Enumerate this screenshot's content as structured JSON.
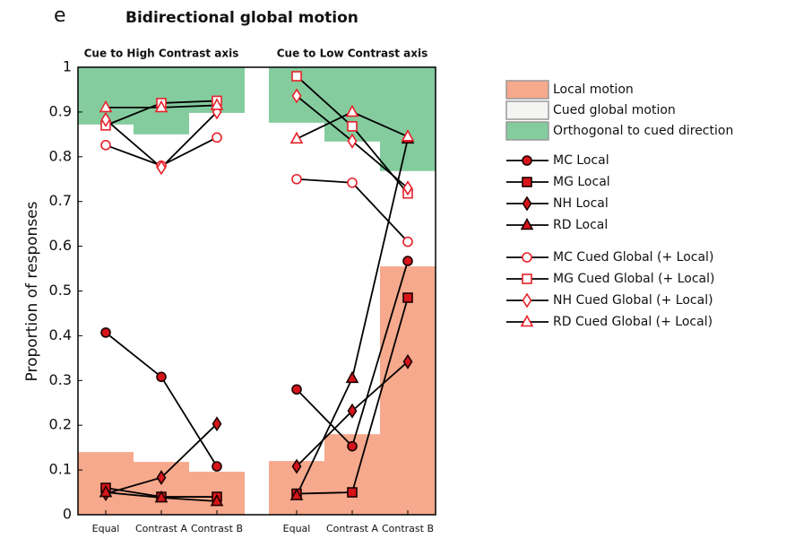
{
  "panel_letter": "e",
  "chart_data": {
    "type": "line",
    "title": "Bidirectional global motion",
    "y_label": "Proportion of responses",
    "ylim": [
      0,
      1
    ],
    "yticks": [
      0,
      0.1,
      0.2,
      0.3,
      0.4,
      0.5,
      0.6,
      0.7,
      0.8,
      0.9,
      1
    ],
    "panels": [
      {
        "title": "Cue to High Contrast axis",
        "categories": [
          "Equal",
          "Contrast A",
          "Contrast B"
        ]
      },
      {
        "title": "Cue to Low Contrast axis",
        "categories": [
          "Equal",
          "Contrast A",
          "Contrast B"
        ]
      }
    ],
    "regions": [
      {
        "name": "Local motion",
        "color": "#f6a98c",
        "fill_from": "bottom",
        "values": [
          [
            0.14,
            0.118,
            0.096
          ],
          [
            0.12,
            0.18,
            0.555
          ]
        ]
      },
      {
        "name": "Cued global motion",
        "color": "#f4f4f2"
      },
      {
        "name": "Orthogonal to cued direction",
        "color": "#84cc9e",
        "fill_from": "top",
        "values": [
          [
            0.872,
            0.85,
            0.898
          ],
          [
            0.876,
            0.834,
            0.768
          ]
        ]
      }
    ],
    "series": [
      {
        "name": "MC Local",
        "marker": "circle",
        "color": "#d7141a",
        "filled": true,
        "values": [
          [
            0.407,
            0.308,
            0.108
          ],
          [
            0.28,
            0.153,
            0.567
          ]
        ]
      },
      {
        "name": "MG Local",
        "marker": "square",
        "color": "#d7141a",
        "filled": true,
        "values": [
          [
            0.06,
            0.04,
            0.04
          ],
          [
            0.047,
            0.05,
            0.485
          ]
        ]
      },
      {
        "name": "NH Local",
        "marker": "diamond",
        "color": "#d7141a",
        "filled": true,
        "values": [
          [
            0.047,
            0.083,
            0.203
          ],
          [
            0.108,
            0.232,
            0.342
          ]
        ]
      },
      {
        "name": "RD Local",
        "marker": "triangle",
        "color": "#d7141a",
        "filled": true,
        "values": [
          [
            0.05,
            0.038,
            0.03
          ],
          [
            0.043,
            0.305,
            0.84
          ]
        ]
      },
      {
        "name": "MC Cued Global (+ Local)",
        "marker": "circle",
        "color": "#e8202a",
        "filled": false,
        "values": [
          [
            0.826,
            0.78,
            0.843
          ],
          [
            0.75,
            0.742,
            0.61
          ]
        ]
      },
      {
        "name": "MG Cued Global (+ Local)",
        "marker": "square",
        "color": "#e8202a",
        "filled": false,
        "values": [
          [
            0.87,
            0.92,
            0.925
          ],
          [
            0.98,
            0.868,
            0.718
          ]
        ]
      },
      {
        "name": "NH Cued Global (+ Local)",
        "marker": "diamond",
        "color": "#e8202a",
        "filled": false,
        "values": [
          [
            0.883,
            0.776,
            0.9
          ],
          [
            0.936,
            0.835,
            0.73
          ]
        ]
      },
      {
        "name": "RD Cued Global (+ Local)",
        "marker": "triangle",
        "color": "#e8202a",
        "filled": false,
        "values": [
          [
            0.91,
            0.91,
            0.915
          ],
          [
            0.84,
            0.9,
            0.845
          ]
        ]
      }
    ]
  }
}
